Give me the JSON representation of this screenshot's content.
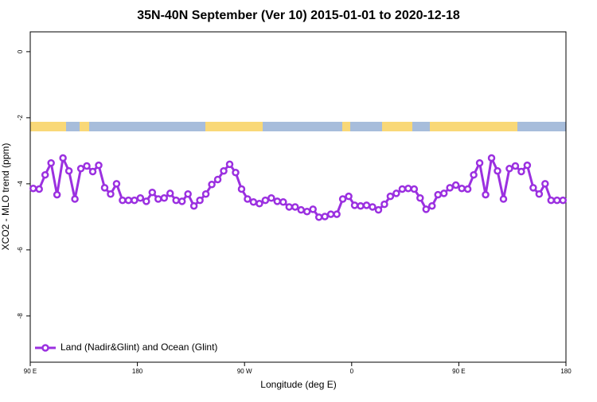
{
  "chart_data": {
    "type": "line",
    "title": "35N-40N September (Ver 10)   2015-01-01 to 2020-12-18",
    "x_label": "Longitude (deg E)",
    "y_label": "XCO2 - MLO trend (ppm)",
    "x": [
      92.5,
      97.5,
      102.5,
      107.5,
      112.5,
      117.5,
      122.5,
      127.5,
      132.5,
      137.5,
      142.5,
      147.5,
      152.5,
      157.5,
      162.5,
      167.5,
      172.5,
      177.5,
      182.5,
      187.5,
      192.5,
      197.5,
      202.5,
      207.5,
      212.5,
      217.5,
      222.5,
      227.5,
      232.5,
      237.5,
      242.5,
      247.5,
      252.5,
      257.5,
      262.5,
      267.5,
      272.5,
      277.5,
      282.5,
      287.5,
      292.5,
      297.5,
      302.5,
      307.5,
      312.5,
      317.5,
      322.5,
      327.5,
      332.5,
      337.5,
      342.5,
      347.5,
      352.5,
      357.5,
      362.5,
      367.5,
      372.5,
      377.5,
      382.5,
      387.5,
      392.5,
      397.5,
      402.5,
      407.5,
      412.5,
      417.5,
      422.5,
      427.5,
      432.5,
      437.5,
      442.5,
      447.5,
      452.5,
      457.5,
      462.5,
      467.5,
      472.5,
      477.5,
      482.5,
      487.5,
      492.5,
      497.5,
      502.5,
      507.5,
      512.5,
      517.5,
      522.5,
      527.5,
      532.5,
      537.5
    ],
    "series": [
      {
        "name": "Land (Nadir&Glint) and Ocean (Glint)",
        "color": "#9b30e0",
        "values": [
          -4.14,
          -4.16,
          -3.73,
          -3.37,
          -4.33,
          -3.22,
          -3.61,
          -4.46,
          -3.54,
          -3.46,
          -3.63,
          -3.44,
          -4.12,
          -4.31,
          -4.0,
          -4.5,
          -4.5,
          -4.5,
          -4.43,
          -4.53,
          -4.26,
          -4.46,
          -4.43,
          -4.29,
          -4.5,
          -4.53,
          -4.31,
          -4.67,
          -4.5,
          -4.31,
          -4.02,
          -3.87,
          -3.61,
          -3.41,
          -3.66,
          -4.16,
          -4.46,
          -4.55,
          -4.6,
          -4.5,
          -4.43,
          -4.53,
          -4.55,
          -4.7,
          -4.7,
          -4.79,
          -4.84,
          -4.77,
          -5.01,
          -4.99,
          -4.92,
          -4.92,
          -4.46,
          -4.38,
          -4.65,
          -4.67,
          -4.65,
          -4.7,
          -4.79,
          -4.62,
          -4.38,
          -4.29,
          -4.16,
          -4.14,
          -4.16,
          -4.43,
          -4.77,
          -4.67,
          -4.33,
          -4.29,
          -4.12,
          -4.04,
          -4.14,
          -4.16,
          -3.73,
          -3.37,
          -4.33,
          -3.22,
          -3.61,
          -4.46,
          -3.54,
          -3.46,
          -3.63,
          -3.44,
          -4.12,
          -4.31,
          -4.0,
          -4.5,
          -4.5,
          -4.5
        ]
      }
    ],
    "xlim": [
      90,
      540
    ],
    "xticks": [
      {
        "value": 90,
        "label": "90 E"
      },
      180,
      {
        "value": 270,
        "label": "90 W"
      },
      {
        "value": 360,
        "label": "0"
      },
      {
        "value": 450,
        "label": "90 E"
      },
      {
        "value": 540,
        "label": "180"
      }
    ],
    "ylim": [
      -9.4,
      0.6
    ],
    "yticks": [
      0,
      -2,
      -4,
      -6,
      -8
    ],
    "legend": "bottom-left"
  }
}
